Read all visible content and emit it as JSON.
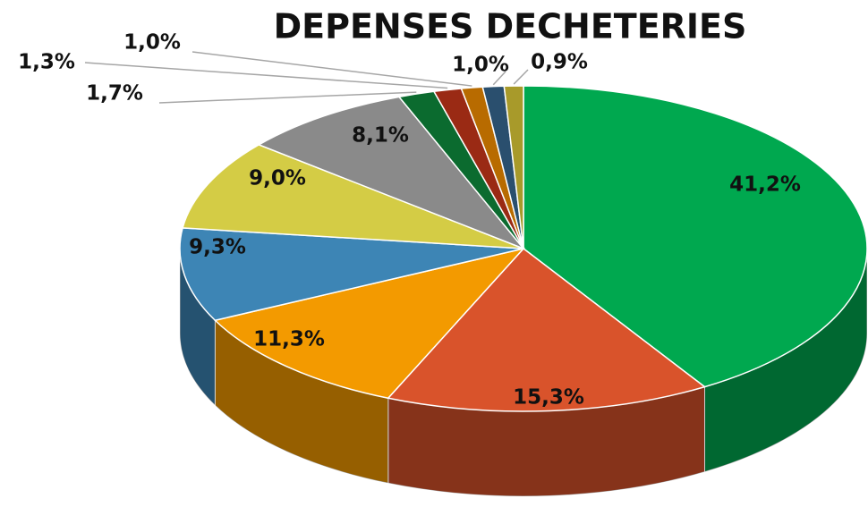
{
  "chart_data": {
    "type": "pie",
    "title": "DEPENSES DECHETERIES",
    "values": [
      41.2,
      15.3,
      11.3,
      9.3,
      9.0,
      8.1,
      1.7,
      1.3,
      1.0,
      1.0,
      0.9
    ],
    "value_labels": [
      "41,2%",
      "15,3%",
      "11,3%",
      "9,3%",
      "9,0%",
      "8,1%",
      "1,7%",
      "1,3%",
      "1,0%",
      "1,0%",
      "0,9%"
    ],
    "colors": [
      "#00a84f",
      "#d9532b",
      "#f39a00",
      "#3d85b5",
      "#d4cc45",
      "#8a8a8a",
      "#0b6b2f",
      "#9a2a14",
      "#b86b00",
      "#2a4f6e",
      "#a89a2a"
    ]
  }
}
